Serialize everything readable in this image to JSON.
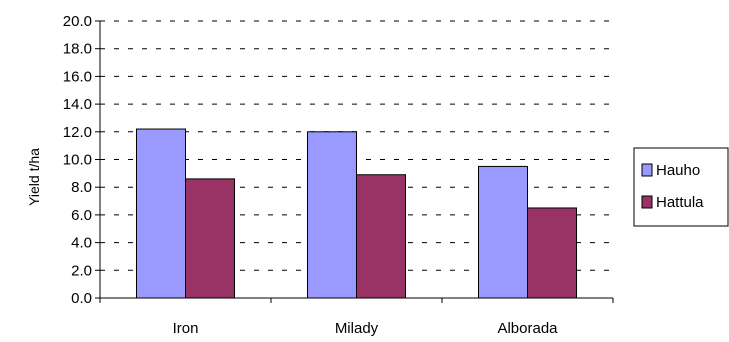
{
  "chart_data": {
    "type": "bar",
    "title": "",
    "xlabel": "",
    "ylabel": "Yield t/ha",
    "categories": [
      "Iron",
      "Milady",
      "Alborada"
    ],
    "series": [
      {
        "name": "Hauho",
        "values": [
          12.2,
          12.0,
          9.5
        ],
        "color": "#9999ff"
      },
      {
        "name": "Hattula",
        "values": [
          8.6,
          8.9,
          6.5
        ],
        "color": "#993366"
      }
    ],
    "ylim": [
      0,
      20
    ],
    "ytick_step": 2,
    "ytick_labels": [
      "0.0",
      "2.0",
      "4.0",
      "6.0",
      "8.0",
      "10.0",
      "12.0",
      "14.0",
      "16.0",
      "18.0",
      "20.0"
    ],
    "grid": "horizontal dashed",
    "legend_position": "right"
  }
}
